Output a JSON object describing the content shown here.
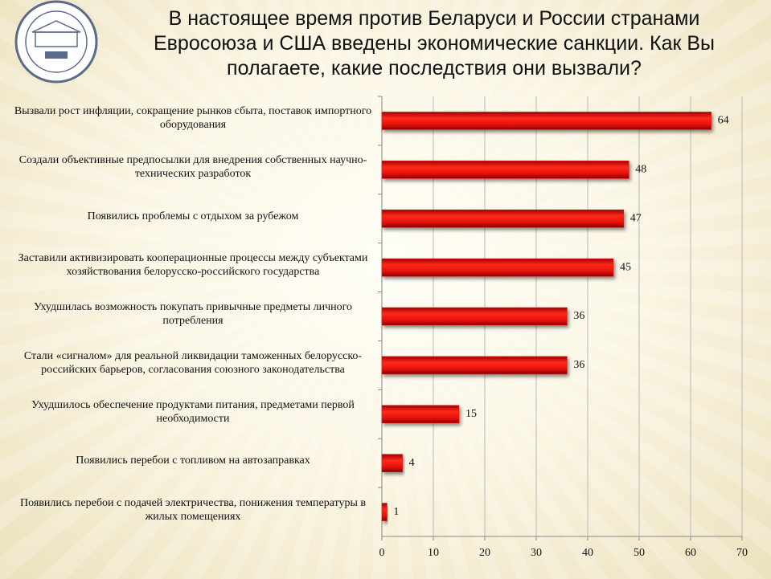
{
  "chart_data": {
    "type": "bar",
    "orientation": "horizontal",
    "title": "В настоящее время против Беларуси и России странами Евросоюза и США введены экономические санкции. Как Вы полагаете, какие последствия они вызвали?",
    "categories": [
      "Вызвали рост инфляции, сокращение рынков сбыта, поставок импортного оборудования",
      "Создали объективные предпосылки для внедрения собственных научно-технических разработок",
      "Появились проблемы с отдыхом за рубежом",
      "Заставили активизировать кооперационные процессы между субъектами хозяйствования белорусско-российского государства",
      "Ухудшилась возможность  покупать привычные предметы личного потребления",
      "Стали «сигналом» для реальной ликвидации  таможенных белорусско-российских барьеров, согласования союзного законодательства",
      "Ухудшилось обеспечение продуктами питания, предметами первой необходимости",
      "Появились перебои с топливом на автозаправках",
      "Появились  перебои с подачей электричества, понижения температуры в жилых помещениях"
    ],
    "values": [
      64,
      48,
      47,
      45,
      36,
      36,
      15,
      4,
      1
    ],
    "color": "#e8120c",
    "xlim": [
      0,
      70
    ],
    "xticks": [
      0,
      10,
      20,
      30,
      40,
      50,
      60,
      70
    ],
    "grid": true
  }
}
